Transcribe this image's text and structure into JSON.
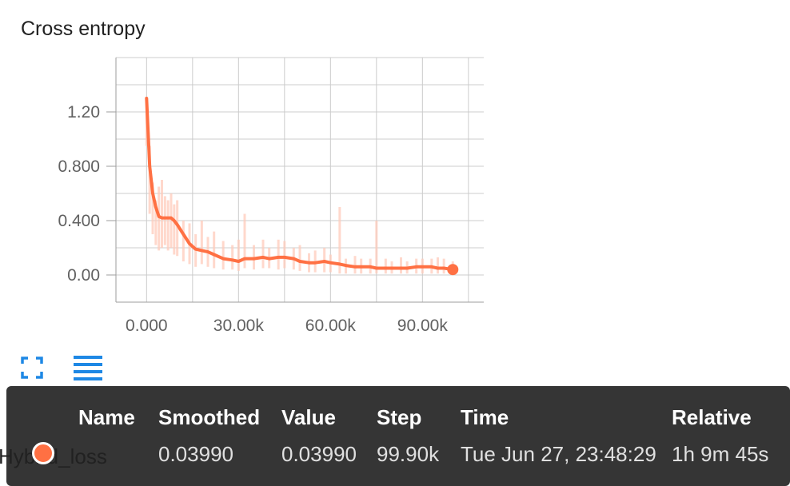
{
  "title": "Cross entropy",
  "colors": {
    "series": "#ff7043",
    "raw": "#ffccbc",
    "grid": "#cccccc",
    "axis": "#9e9e9e",
    "tooltip_bg": "#353535"
  },
  "icons": {
    "expand": "fullscreen-icon",
    "data": "list-icon"
  },
  "chart_data": {
    "type": "line",
    "title": "Cross entropy",
    "xlabel": "",
    "ylabel": "",
    "xlim": [
      -10000,
      110000
    ],
    "ylim": [
      -0.2,
      1.6
    ],
    "x_ticks": [
      0,
      30000,
      60000,
      90000
    ],
    "x_tick_labels": [
      "0.000",
      "30.00k",
      "60.00k",
      "90.00k"
    ],
    "y_ticks": [
      0,
      0.4,
      0.8,
      1.2
    ],
    "y_tick_labels": [
      "0.00",
      "0.400",
      "0.800",
      "1.20"
    ],
    "grid": true,
    "series": [
      {
        "name": "Hybrid_loss",
        "x": [
          0,
          1000,
          2000,
          3000,
          4000,
          5000,
          6000,
          7000,
          8000,
          9000,
          10000,
          12000,
          14000,
          16000,
          18000,
          20000,
          22000,
          25000,
          28000,
          30000,
          32000,
          35000,
          38000,
          40000,
          43000,
          45000,
          48000,
          50000,
          53000,
          55000,
          58000,
          60000,
          63000,
          65000,
          68000,
          70000,
          73000,
          75000,
          78000,
          80000,
          83000,
          85000,
          88000,
          90000,
          93000,
          95000,
          97000,
          99900
        ],
        "smoothed": [
          1.3,
          0.8,
          0.6,
          0.5,
          0.43,
          0.42,
          0.42,
          0.42,
          0.42,
          0.4,
          0.37,
          0.3,
          0.23,
          0.19,
          0.18,
          0.17,
          0.15,
          0.12,
          0.11,
          0.1,
          0.12,
          0.12,
          0.13,
          0.12,
          0.13,
          0.13,
          0.12,
          0.1,
          0.09,
          0.09,
          0.1,
          0.09,
          0.08,
          0.07,
          0.06,
          0.06,
          0.06,
          0.05,
          0.05,
          0.05,
          0.05,
          0.05,
          0.06,
          0.06,
          0.06,
          0.05,
          0.05,
          0.04
        ],
        "raw_band": [
          [
            0.95,
            1.3
          ],
          [
            0.45,
            0.95
          ],
          [
            0.3,
            0.68
          ],
          [
            0.22,
            0.55
          ],
          [
            0.18,
            0.65
          ],
          [
            0.2,
            0.7
          ],
          [
            0.22,
            0.58
          ],
          [
            0.18,
            0.55
          ],
          [
            0.2,
            0.6
          ],
          [
            0.15,
            0.52
          ],
          [
            0.14,
            0.55
          ],
          [
            0.1,
            0.4
          ],
          [
            0.08,
            0.38
          ],
          [
            0.06,
            0.3
          ],
          [
            0.08,
            0.4
          ],
          [
            0.06,
            0.28
          ],
          [
            0.05,
            0.32
          ],
          [
            0.04,
            0.25
          ],
          [
            0.04,
            0.22
          ],
          [
            0.03,
            0.26
          ],
          [
            0.05,
            0.45
          ],
          [
            0.04,
            0.22
          ],
          [
            0.05,
            0.26
          ],
          [
            0.05,
            0.2
          ],
          [
            0.04,
            0.26
          ],
          [
            0.05,
            0.25
          ],
          [
            0.04,
            0.2
          ],
          [
            0.03,
            0.22
          ],
          [
            0.02,
            0.16
          ],
          [
            0.02,
            0.18
          ],
          [
            0.02,
            0.2
          ],
          [
            0.02,
            0.15
          ],
          [
            0.01,
            0.5
          ],
          [
            0.01,
            0.12
          ],
          [
            0.01,
            0.14
          ],
          [
            0.01,
            0.12
          ],
          [
            0.01,
            0.12
          ],
          [
            0.01,
            0.4
          ],
          [
            0.01,
            0.12
          ],
          [
            0.01,
            0.1
          ],
          [
            0.01,
            0.13
          ],
          [
            0.01,
            0.1
          ],
          [
            0.01,
            0.12
          ],
          [
            0.01,
            0.12
          ],
          [
            0.01,
            0.12
          ],
          [
            0.01,
            0.13
          ],
          [
            0.01,
            0.12
          ],
          [
            0.02,
            0.1
          ]
        ]
      }
    ]
  },
  "tooltip": {
    "headers": {
      "name": "Name",
      "smoothed": "Smoothed",
      "value": "Value",
      "step": "Step",
      "time": "Time",
      "relative": "Relative"
    },
    "row": {
      "name": "Hybrid_loss",
      "smoothed": "0.03990",
      "value": "0.03990",
      "step": "99.90k",
      "time": "Tue Jun 27, 23:48:29",
      "relative": "1h 9m 45s"
    }
  }
}
